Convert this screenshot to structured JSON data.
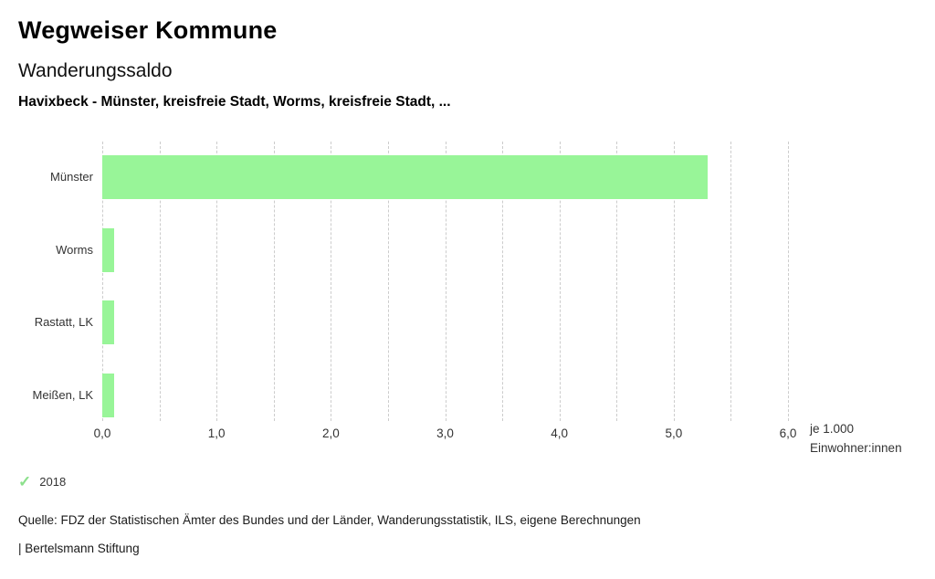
{
  "header": {
    "title": "Wegweiser Kommune",
    "subtitle": "Wanderungssaldo",
    "selection": "Havixbeck - Münster, kreisfreie Stadt, Worms, kreisfreie Stadt, ..."
  },
  "chart_data": {
    "type": "bar",
    "orientation": "horizontal",
    "title": "Wanderungssaldo",
    "subtitle": "Havixbeck - Münster, kreisfreie Stadt, Worms, kreisfreie Stadt, ...",
    "categories": [
      "Münster",
      "Worms",
      "Rastatt, LK",
      "Meißen, LK"
    ],
    "series": [
      {
        "name": "2018",
        "values": [
          5.3,
          0.1,
          0.1,
          0.1
        ]
      }
    ],
    "xlabel": "je 1.000 Einwohner:innen",
    "xlim": [
      0,
      6
    ],
    "grid_step": 0.5,
    "xticks": [
      "0,0",
      "1,0",
      "2,0",
      "3,0",
      "4,0",
      "5,0",
      "6,0"
    ],
    "grid": true,
    "legend_position": "bottom-left",
    "bar_color": "#98f598",
    "grid_color": "#cccccc"
  },
  "axis_unit": {
    "line1": "je 1.000",
    "line2": "Einwohner:innen"
  },
  "legend": {
    "check_icon": "✓",
    "label": "2018",
    "color": "#8ce08c"
  },
  "footer": {
    "source": "Quelle: FDZ der Statistischen Ämter des Bundes und der Länder, Wanderungsstatistik, ILS, eigene Berechnungen",
    "attribution": "| Bertelsmann Stiftung"
  }
}
